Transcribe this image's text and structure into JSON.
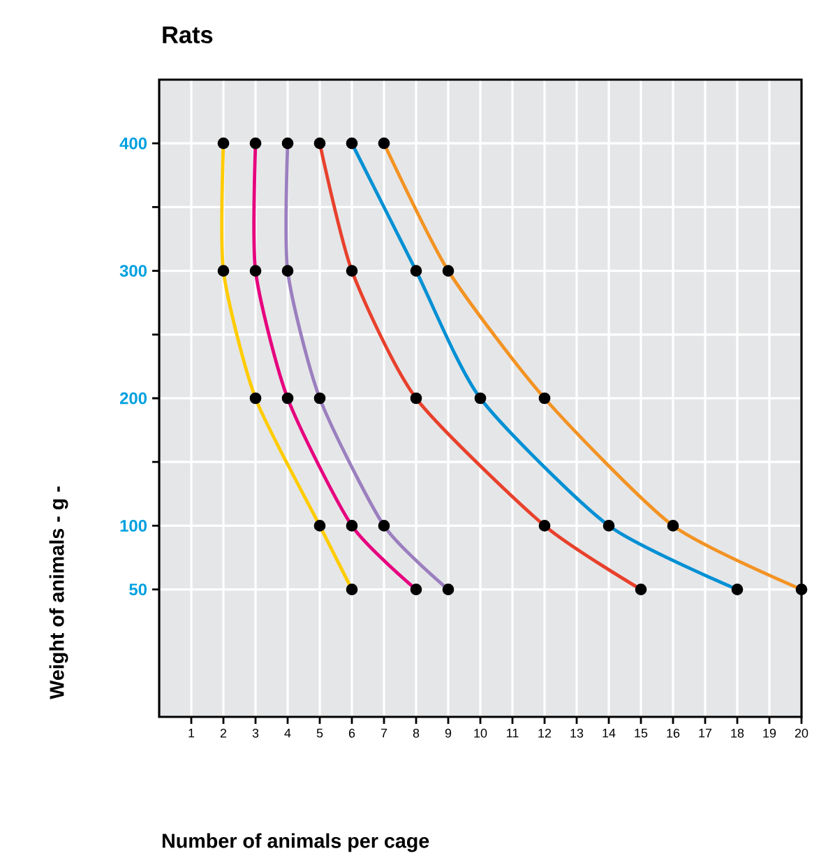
{
  "chart_data": {
    "type": "line",
    "title": "Rats",
    "xlabel": "Number of animals per cage",
    "ylabel": "Weight of animals - g -",
    "xlim": [
      0,
      20
    ],
    "ylim": [
      -50,
      450
    ],
    "xticks": [
      1,
      2,
      3,
      4,
      5,
      6,
      7,
      8,
      9,
      10,
      11,
      12,
      13,
      14,
      15,
      16,
      17,
      18,
      19,
      20
    ],
    "yticks": [
      50,
      100,
      {
        "value": 150,
        "label": null
      },
      200,
      {
        "value": 250,
        "label": null
      },
      300,
      {
        "value": 350,
        "label": null
      },
      400
    ],
    "grid": true,
    "marker": "circle",
    "line_style": "solid",
    "series": [
      {
        "color": "#ffcc00",
        "x": [
          2,
          2,
          3,
          5,
          6
        ],
        "values": [
          400,
          300,
          200,
          100,
          50
        ]
      },
      {
        "color": "#e6007e",
        "x": [
          3,
          3,
          4,
          6,
          8
        ],
        "values": [
          400,
          300,
          200,
          100,
          50
        ]
      },
      {
        "color": "#9b7fbf",
        "x": [
          4,
          4,
          5,
          7,
          9
        ],
        "values": [
          400,
          300,
          200,
          100,
          50
        ]
      },
      {
        "color": "#e8412c",
        "x": [
          5,
          6,
          8,
          12,
          15
        ],
        "values": [
          400,
          300,
          200,
          100,
          50
        ]
      },
      {
        "color": "#0090d4",
        "x": [
          6,
          8,
          10,
          14,
          18
        ],
        "values": [
          400,
          300,
          200,
          100,
          50
        ]
      },
      {
        "color": "#f39323",
        "x": [
          7,
          9,
          12,
          16,
          20
        ],
        "values": [
          400,
          300,
          200,
          100,
          50
        ]
      }
    ]
  }
}
